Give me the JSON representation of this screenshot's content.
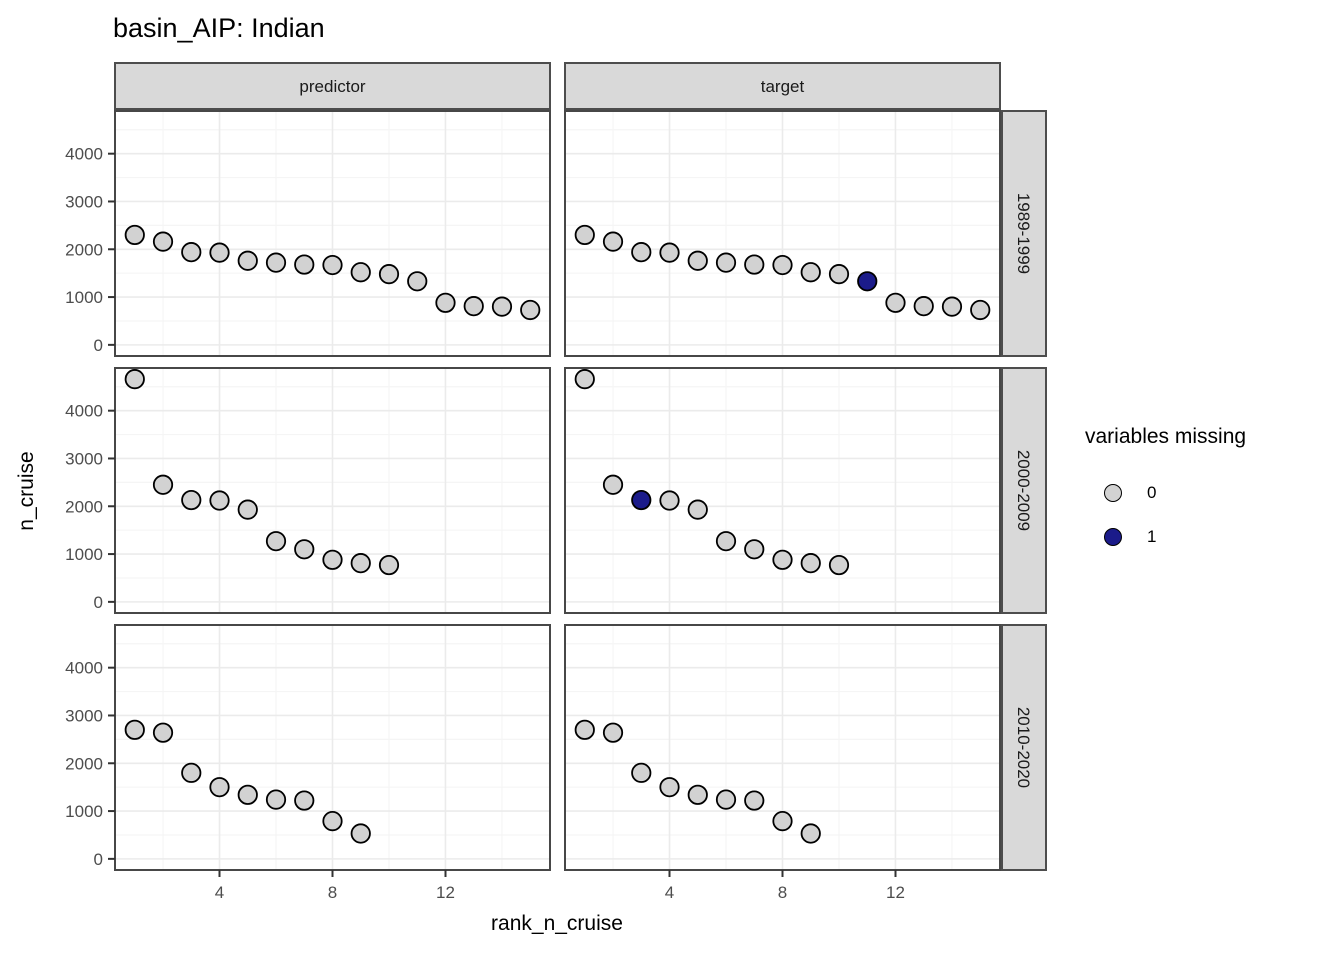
{
  "chart_data": {
    "type": "scatter",
    "title": "basin_AIP: Indian",
    "xlabel": "rank_n_cruise",
    "ylabel": "n_cruise",
    "facet_columns": [
      "predictor",
      "target"
    ],
    "facet_rows": [
      "1989-1999",
      "2000-2009",
      "2010-2020"
    ],
    "x_ticks": [
      4,
      8,
      12
    ],
    "y_ticks": [
      0,
      1000,
      2000,
      3000,
      4000
    ],
    "x_minor_gridlines": [
      2,
      6,
      10,
      14
    ],
    "y_minor_gridlines": [
      500,
      1500,
      2500,
      3500,
      4500
    ],
    "xlim": [
      0.3,
      15.7
    ],
    "ylim": [
      -233,
      4893
    ],
    "grid": true,
    "legend": {
      "title": "variables missing",
      "position": "right",
      "entries": [
        {
          "label": "0",
          "fill": "#d2d2d2"
        },
        {
          "label": "1",
          "fill": "#1b1b8a"
        }
      ]
    },
    "colors": {
      "point_stroke": "#000000",
      "point_fill_missing0": "#d2d2d2",
      "point_fill_missing1": "#1b1b8a",
      "strip_fill": "#d9d9d9",
      "strip_border": "#4d4d4d",
      "panel_border": "#474747",
      "panel_background": "#ffffff",
      "grid_major": "#ebebeb",
      "grid_minor": "#f5f5f5",
      "axis_text": "#4d4d4d",
      "strip_text": "#1a1a1a",
      "tick_mark": "#333333"
    },
    "panels": [
      {
        "row": "1989-1999",
        "col": "predictor",
        "points": [
          [
            1,
            2300,
            0
          ],
          [
            2,
            2160,
            0
          ],
          [
            3,
            1940,
            0
          ],
          [
            4,
            1930,
            0
          ],
          [
            5,
            1760,
            0
          ],
          [
            6,
            1720,
            0
          ],
          [
            7,
            1680,
            0
          ],
          [
            8,
            1670,
            0
          ],
          [
            9,
            1520,
            0
          ],
          [
            10,
            1480,
            0
          ],
          [
            11,
            1330,
            0
          ],
          [
            12,
            880,
            0
          ],
          [
            13,
            810,
            0
          ],
          [
            14,
            800,
            0
          ],
          [
            15,
            730,
            0
          ]
        ]
      },
      {
        "row": "1989-1999",
        "col": "target",
        "points": [
          [
            1,
            2300,
            0
          ],
          [
            2,
            2160,
            0
          ],
          [
            3,
            1940,
            0
          ],
          [
            4,
            1930,
            0
          ],
          [
            5,
            1760,
            0
          ],
          [
            6,
            1720,
            0
          ],
          [
            7,
            1680,
            0
          ],
          [
            8,
            1670,
            0
          ],
          [
            9,
            1520,
            0
          ],
          [
            10,
            1480,
            0
          ],
          [
            11,
            1330,
            1
          ],
          [
            12,
            880,
            0
          ],
          [
            13,
            810,
            0
          ],
          [
            14,
            800,
            0
          ],
          [
            15,
            730,
            0
          ]
        ]
      },
      {
        "row": "2000-2009",
        "col": "predictor",
        "points": [
          [
            1,
            4660,
            0
          ],
          [
            2,
            2450,
            0
          ],
          [
            3,
            2130,
            0
          ],
          [
            4,
            2120,
            0
          ],
          [
            5,
            1930,
            0
          ],
          [
            6,
            1270,
            0
          ],
          [
            7,
            1100,
            0
          ],
          [
            8,
            880,
            0
          ],
          [
            9,
            810,
            0
          ],
          [
            10,
            770,
            0
          ]
        ]
      },
      {
        "row": "2000-2009",
        "col": "target",
        "points": [
          [
            1,
            4660,
            0
          ],
          [
            2,
            2450,
            0
          ],
          [
            3,
            2130,
            1
          ],
          [
            4,
            2120,
            0
          ],
          [
            5,
            1930,
            0
          ],
          [
            6,
            1270,
            0
          ],
          [
            7,
            1100,
            0
          ],
          [
            8,
            880,
            0
          ],
          [
            9,
            810,
            0
          ],
          [
            10,
            770,
            0
          ]
        ]
      },
      {
        "row": "2010-2020",
        "col": "predictor",
        "points": [
          [
            1,
            2700,
            0
          ],
          [
            2,
            2640,
            0
          ],
          [
            3,
            1800,
            0
          ],
          [
            4,
            1500,
            0
          ],
          [
            5,
            1340,
            0
          ],
          [
            6,
            1240,
            0
          ],
          [
            7,
            1220,
            0
          ],
          [
            8,
            790,
            0
          ],
          [
            9,
            530,
            0
          ]
        ]
      },
      {
        "row": "2010-2020",
        "col": "target",
        "points": [
          [
            1,
            2700,
            0
          ],
          [
            2,
            2640,
            0
          ],
          [
            3,
            1800,
            0
          ],
          [
            4,
            1500,
            0
          ],
          [
            5,
            1340,
            0
          ],
          [
            6,
            1240,
            0
          ],
          [
            7,
            1220,
            0
          ],
          [
            8,
            790,
            0
          ],
          [
            9,
            530,
            0
          ]
        ]
      }
    ]
  }
}
